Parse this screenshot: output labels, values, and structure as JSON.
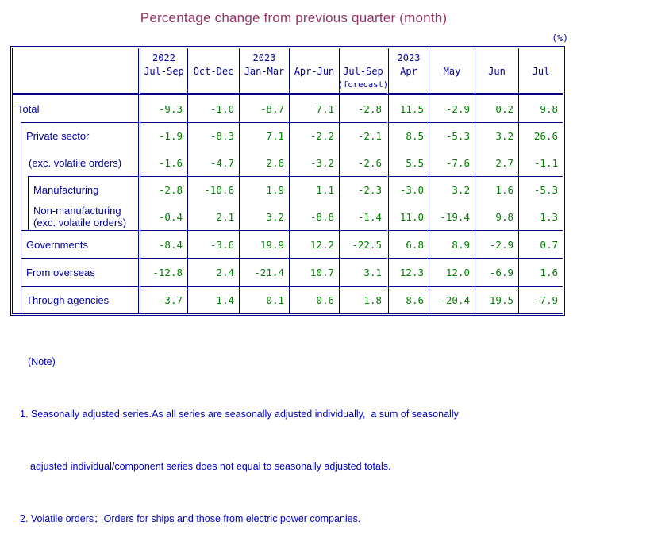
{
  "title": "Percentage change from previous quarter (month)",
  "unit_label": "(%)",
  "colors": {
    "title": "#993366",
    "table_text": "#0000A0",
    "numbers": "#008000",
    "border": "#000080",
    "notes": "#0000C8"
  },
  "table": {
    "columns": [
      {
        "year": "2022",
        "label": "Jul-Sep",
        "sub": ""
      },
      {
        "year": "",
        "label": "Oct-Dec",
        "sub": ""
      },
      {
        "year": "2023",
        "label": "Jan-Mar",
        "sub": ""
      },
      {
        "year": "",
        "label": "Apr-Jun",
        "sub": ""
      },
      {
        "year": "",
        "label": "Jul-Sep",
        "sub": "(forecast)"
      },
      {
        "year": "2023",
        "label": "Apr",
        "sub": ""
      },
      {
        "year": "",
        "label": "May",
        "sub": ""
      },
      {
        "year": "",
        "label": "Jun",
        "sub": ""
      },
      {
        "year": "",
        "label": "Jul",
        "sub": ""
      }
    ],
    "rows": [
      {
        "key": "total",
        "label": "Total",
        "values": [
          "-9.3",
          "-1.0",
          "-8.7",
          "7.1",
          "-2.8",
          "11.5",
          "-2.9",
          "0.2",
          "9.8"
        ]
      },
      {
        "key": "private-sector",
        "label": "Private sector",
        "values": [
          "-1.9",
          "-8.3",
          "7.1",
          "-2.2",
          "-2.1",
          "8.5",
          "-5.3",
          "3.2",
          "26.6"
        ]
      },
      {
        "key": "exc-volatile",
        "label": "(exc. volatile orders)",
        "values": [
          "-1.6",
          "-4.7",
          "2.6",
          "-3.2",
          "-2.6",
          "5.5",
          "-7.6",
          "2.7",
          "-1.1"
        ]
      },
      {
        "key": "manufacturing",
        "label": "Manufacturing",
        "values": [
          "-2.8",
          "-10.6",
          "1.9",
          "1.1",
          "-2.3",
          "-3.0",
          "3.2",
          "1.6",
          "-5.3"
        ]
      },
      {
        "key": "non-manufacturing",
        "label": "Non-manufacturing",
        "label2": "(exc. volatile orders)",
        "values": [
          "-0.4",
          "2.1",
          "3.2",
          "-8.8",
          "-1.4",
          "11.0",
          "-19.4",
          "9.8",
          "1.3"
        ]
      },
      {
        "key": "governments",
        "label": "Governments",
        "values": [
          "-8.4",
          "-3.6",
          "19.9",
          "12.2",
          "-22.5",
          "6.8",
          "8.9",
          "-2.9",
          "0.7"
        ]
      },
      {
        "key": "from-overseas",
        "label": "From overseas",
        "values": [
          "-12.8",
          "2.4",
          "-21.4",
          "10.7",
          "3.1",
          "12.3",
          "12.0",
          "-6.9",
          "1.6"
        ]
      },
      {
        "key": "through-agencies",
        "label": "Through agencies",
        "values": [
          "-3.7",
          "1.4",
          "0.1",
          "0.6",
          "1.8",
          "8.6",
          "-20.4",
          "19.5",
          "-7.9"
        ]
      }
    ]
  },
  "notes": {
    "heading": "(Note)",
    "note1_line1": "1. Seasonally adjusted series.As all series are seasonally adjusted individually,  a sum of seasonally",
    "note1_line2": "adjusted individual/component series does not equal to seasonally adjusted totals.",
    "note2": "2. Volatile orders：Orders for ships and those from electric power companies."
  }
}
